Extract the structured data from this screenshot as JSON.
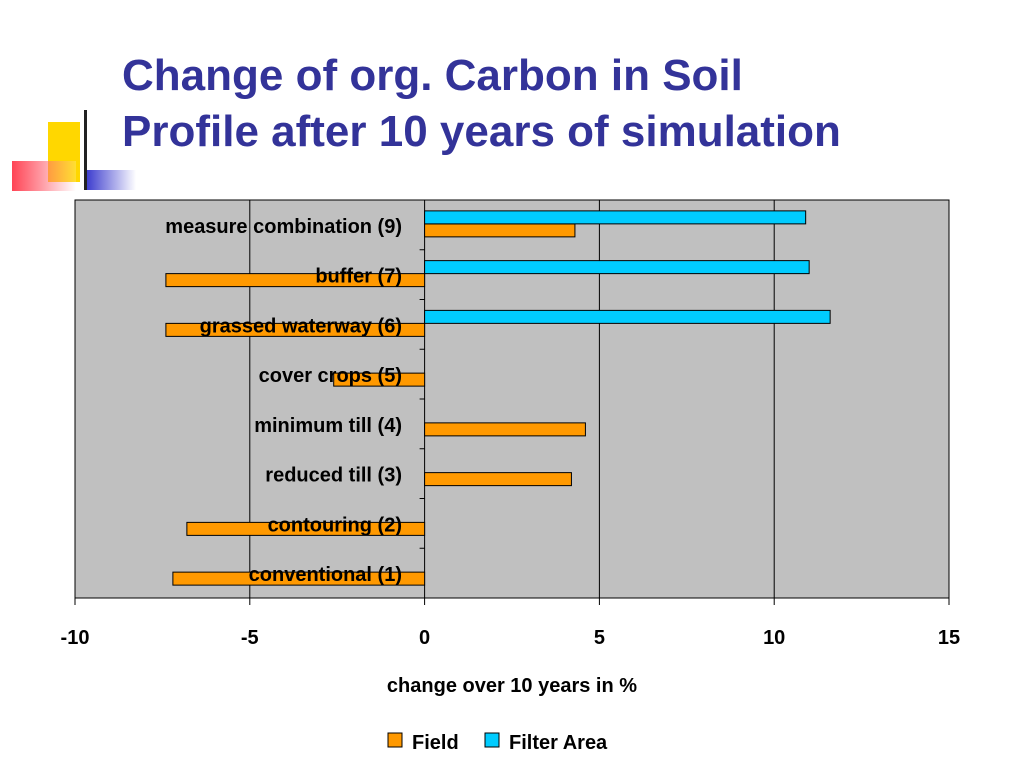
{
  "slide": {
    "title_line1": "Change of org. Carbon in Soil",
    "title_line2": "Profile after 10 years of simulation"
  },
  "colors": {
    "title": "#333399",
    "plot_background": "#c0c0c0",
    "field": "#ff9900",
    "filter_area": "#00ccff",
    "deco_yellow": "#ffd700",
    "deco_red": "#ff4455",
    "deco_blue": "#3333cc"
  },
  "chart_data": {
    "type": "bar",
    "orientation": "horizontal",
    "title": "",
    "xlabel": "change over 10 years in %",
    "ylabel": "",
    "xlim": [
      -10,
      15
    ],
    "xticks": [
      -10,
      -5,
      0,
      5,
      10,
      15
    ],
    "grid": "vertical",
    "legend_position": "bottom",
    "categories": [
      "conventional (1)",
      "contouring (2)",
      "reduced till (3)",
      "minimum till (4)",
      "cover crops (5)",
      "grassed waterway (6)",
      "buffer (7)",
      "measure combination (9)"
    ],
    "series": [
      {
        "name": "Field",
        "values": [
          -7.2,
          -6.8,
          4.2,
          4.6,
          -2.6,
          -7.4,
          -7.4,
          4.3
        ]
      },
      {
        "name": "Filter Area",
        "values": [
          null,
          null,
          null,
          null,
          null,
          11.6,
          11.0,
          10.9
        ]
      }
    ]
  }
}
